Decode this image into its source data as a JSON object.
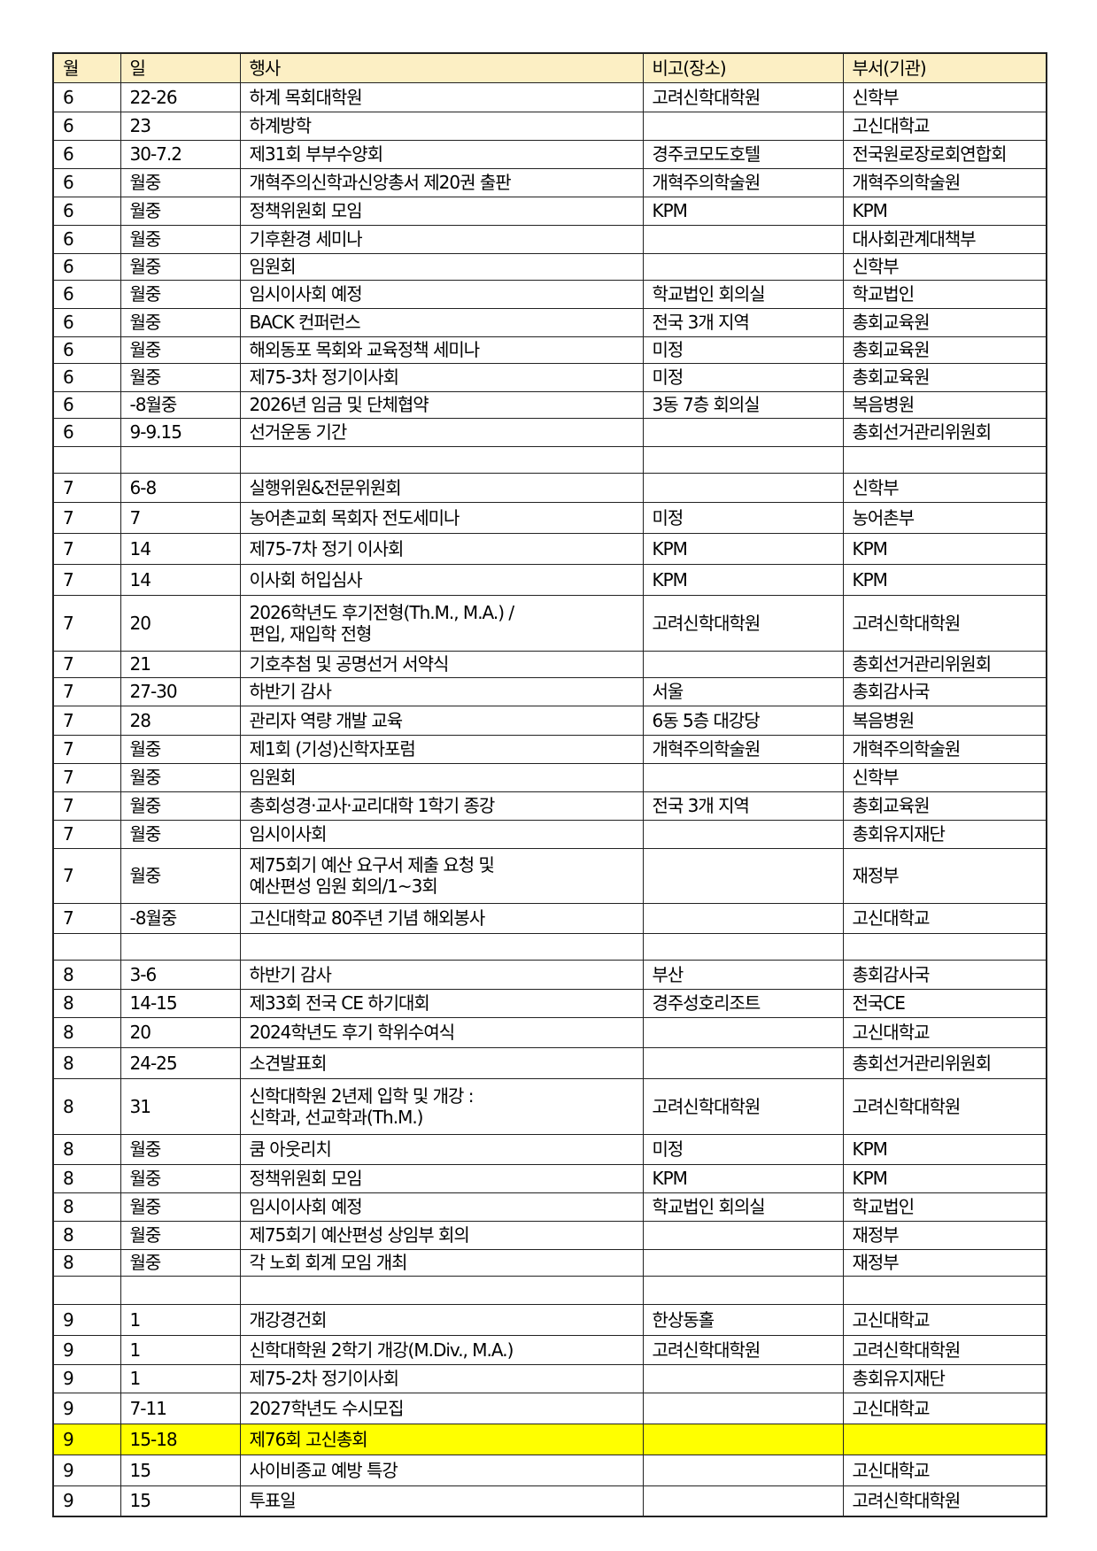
{
  "header": [
    "월",
    "일",
    "행사",
    "비고(장소)",
    "부서(기관)"
  ],
  "colors": {
    "header_bg": "#FCEFC4",
    "highlight": "#FFFF00"
  },
  "rows": [
    {
      "cells": [
        "6",
        "22-26",
        "하계 목회대학원",
        "고려신학대학원",
        "신학부"
      ]
    },
    {
      "cells": [
        "6",
        "23",
        "하계방학",
        "",
        "고신대학교"
      ]
    },
    {
      "cells": [
        "6",
        "30-7.2",
        "제31회 부부수양회",
        "경주코모도호텔",
        "전국원로장로회연합회"
      ]
    },
    {
      "cells": [
        "6",
        "월중",
        "개혁주의신학과신앙총서 제20권 출판",
        "개혁주의학술원",
        "개혁주의학술원"
      ]
    },
    {
      "cells": [
        "6",
        "월중",
        "정책위원회 모임",
        "KPM",
        "KPM"
      ]
    },
    {
      "cells": [
        "6",
        "월중",
        "기후환경 세미나",
        "",
        "대사회관계대책부"
      ]
    },
    {
      "cells": [
        "6",
        "월중",
        "임원회",
        "",
        "신학부"
      ]
    },
    {
      "cells": [
        "6",
        "월중",
        "임시이사회 예정",
        "학교법인 회의실",
        "학교법인"
      ]
    },
    {
      "cells": [
        "6",
        "월중",
        "BACK 컨퍼런스",
        "전국 3개 지역",
        "총회교육원"
      ]
    },
    {
      "cells": [
        "6",
        "월중",
        "해외동포 목회와 교육정책 세미나",
        "미정",
        "총회교육원"
      ]
    },
    {
      "cells": [
        "6",
        "월중",
        "제75-3차 정기이사회",
        "미정",
        "총회교육원"
      ]
    },
    {
      "cells": [
        "6",
        "-8월중",
        "2026년 임금 및 단체협약",
        "3동 7층 회의실",
        "복음병원"
      ]
    },
    {
      "cells": [
        "6",
        "9-9.15",
        "선거운동 기간",
        "",
        "총회선거관리위원회"
      ]
    },
    {
      "cells": [
        "",
        "",
        "",
        "",
        ""
      ]
    },
    {
      "cells": [
        "7",
        "6-8",
        "실행위원&전문위원회",
        "",
        "신학부"
      ]
    },
    {
      "cells": [
        "7",
        "7",
        "농어촌교회 목회자 전도세미나",
        "미정",
        "농어촌부"
      ]
    },
    {
      "cells": [
        "7",
        "14",
        "제75-7차 정기 이사회",
        "KPM",
        "KPM"
      ]
    },
    {
      "cells": [
        "7",
        "14",
        "이사회 허입심사",
        "KPM",
        "KPM"
      ]
    },
    {
      "cells": [
        "7",
        "20",
        "2026학년도 후기전형(Th.M., M.A.) /\n편입, 재입학 전형",
        "고려신학대학원",
        "고려신학대학원"
      ]
    },
    {
      "cells": [
        "7",
        "21",
        "기호추첨 및 공명선거 서약식",
        "",
        "총회선거관리위원회"
      ]
    },
    {
      "cells": [
        "7",
        "27-30",
        "하반기 감사",
        "서울",
        "총회감사국"
      ]
    },
    {
      "cells": [
        "7",
        "28",
        "관리자 역량 개발 교육",
        "6동 5층 대강당",
        "복음병원"
      ]
    },
    {
      "cells": [
        "7",
        "월중",
        "제1회 (기성)신학자포럼",
        "개혁주의학술원",
        "개혁주의학술원"
      ]
    },
    {
      "cells": [
        "7",
        "월중",
        "임원회",
        "",
        "신학부"
      ]
    },
    {
      "cells": [
        "7",
        "월중",
        "총회성경·교사·교리대학 1학기 종강",
        "전국 3개 지역",
        "총회교육원"
      ]
    },
    {
      "cells": [
        "7",
        "월중",
        "임시이사회",
        "",
        "총회유지재단"
      ]
    },
    {
      "cells": [
        "7",
        "월중",
        "제75회기 예산 요구서 제출 요청 및\n예산편성 임원 회의/1~3회",
        "",
        "재정부"
      ]
    },
    {
      "cells": [
        "7",
        "-8월중",
        "고신대학교 80주년 기념 해외봉사",
        "",
        "고신대학교"
      ]
    },
    {
      "cells": [
        "",
        "",
        "",
        "",
        ""
      ]
    },
    {
      "cells": [
        "8",
        "3-6",
        "하반기 감사",
        "부산",
        "총회감사국"
      ]
    },
    {
      "cells": [
        "8",
        "14-15",
        "제33회 전국 CE 하기대회",
        "경주성호리조트",
        "전국CE"
      ]
    },
    {
      "cells": [
        "8",
        "20",
        "2024학년도 후기 학위수여식",
        "",
        "고신대학교"
      ]
    },
    {
      "cells": [
        "8",
        "24-25",
        "소견발표회",
        "",
        "총회선거관리위원회"
      ]
    },
    {
      "cells": [
        "8",
        "31",
        "신학대학원 2년제 입학 및 개강 :\n신학과, 선교학과(Th.M.)",
        "고려신학대학원",
        "고려신학대학원"
      ]
    },
    {
      "cells": [
        "8",
        "월중",
        "쿰 아웃리치",
        "미정",
        "KPM"
      ]
    },
    {
      "cells": [
        "8",
        "월중",
        "정책위원회 모임",
        "KPM",
        "KPM"
      ]
    },
    {
      "cells": [
        "8",
        "월중",
        "임시이사회 예정",
        "학교법인 회의실",
        "학교법인"
      ]
    },
    {
      "cells": [
        "8",
        "월중",
        "제75회기 예산편성 상임부 회의",
        "",
        "재정부"
      ]
    },
    {
      "cells": [
        "8",
        "월중",
        "각 노회 회계 모임 개최",
        "",
        "재정부"
      ]
    },
    {
      "cells": [
        "",
        "",
        "",
        "",
        ""
      ]
    },
    {
      "cells": [
        "9",
        "1",
        "개강경건회",
        "한상동홀",
        "고신대학교"
      ]
    },
    {
      "cells": [
        "9",
        "1",
        "신학대학원 2학기 개강(M.Div., M.A.)",
        "고려신학대학원",
        "고려신학대학원"
      ]
    },
    {
      "cells": [
        "9",
        "1",
        "제75-2차 정기이사회",
        "",
        "총회유지재단"
      ]
    },
    {
      "cells": [
        "9",
        "7-11",
        "2027학년도 수시모집",
        "",
        "고신대학교"
      ]
    },
    {
      "cells": [
        "9",
        "15-18",
        "제76회 고신총회",
        "",
        ""
      ],
      "highlighted": true
    },
    {
      "cells": [
        "9",
        "15",
        "사이비종교 예방 특강",
        "",
        "고신대학교"
      ]
    },
    {
      "cells": [
        "9",
        "15",
        "투표일",
        "",
        "고려신학대학원"
      ]
    }
  ]
}
